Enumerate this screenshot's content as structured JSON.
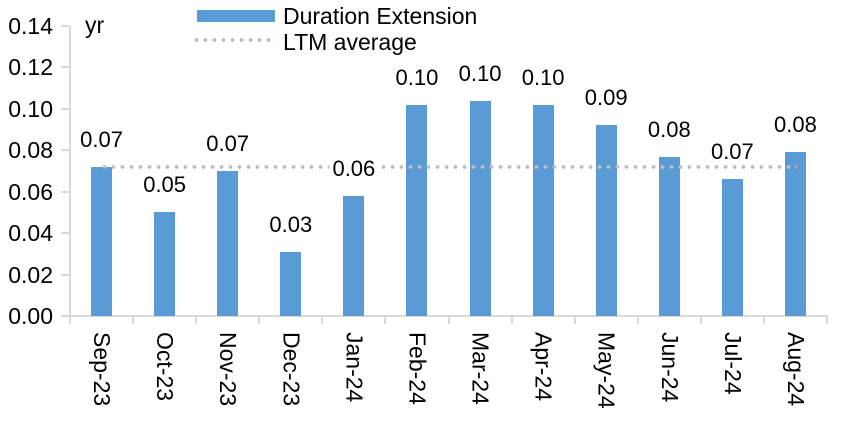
{
  "chart_data": {
    "type": "bar",
    "title": "",
    "categories": [
      "Sep-23",
      "Oct-23",
      "Nov-23",
      "Dec-23",
      "Jan-24",
      "Feb-24",
      "Mar-24",
      "Apr-24",
      "May-24",
      "Jun-24",
      "Jul-24",
      "Aug-24"
    ],
    "series": [
      {
        "name": "Duration Extension",
        "values": [
          0.07,
          0.05,
          0.07,
          0.03,
          0.06,
          0.1,
          0.1,
          0.1,
          0.09,
          0.08,
          0.07,
          0.08
        ],
        "data_labels": [
          "0.07",
          "0.05",
          "0.07",
          "0.03",
          "0.06",
          "0.10",
          "0.10",
          "0.10",
          "0.09",
          "0.08",
          "0.07",
          "0.08"
        ],
        "bar_heights_est": [
          0.072,
          0.05,
          0.07,
          0.031,
          0.058,
          0.102,
          0.104,
          0.102,
          0.092,
          0.077,
          0.066,
          0.079
        ]
      }
    ],
    "reference_line": {
      "name": "LTM average",
      "value": 0.072,
      "style": "dotted"
    },
    "y_axis": {
      "unit": "yr",
      "min": 0.0,
      "max": 0.14,
      "step": 0.02,
      "tick_labels": [
        "0.00",
        "0.02",
        "0.04",
        "0.06",
        "0.08",
        "0.10",
        "0.12",
        "0.14"
      ]
    },
    "legend": {
      "position": "top",
      "entries": [
        {
          "label": "Duration Extension",
          "swatch": "bar"
        },
        {
          "label": "LTM average",
          "swatch": "dotted-line"
        }
      ]
    },
    "layout_hints": {
      "grid": "off",
      "x_labels_rotated": true,
      "data_labels_position": "outside-end"
    },
    "colors": {
      "bar": "#5B9BD5",
      "dotted_line": "#BFBFBF",
      "axis_line": "#D9D9D9",
      "text": "#000000",
      "background": "#FFFFFF"
    }
  }
}
